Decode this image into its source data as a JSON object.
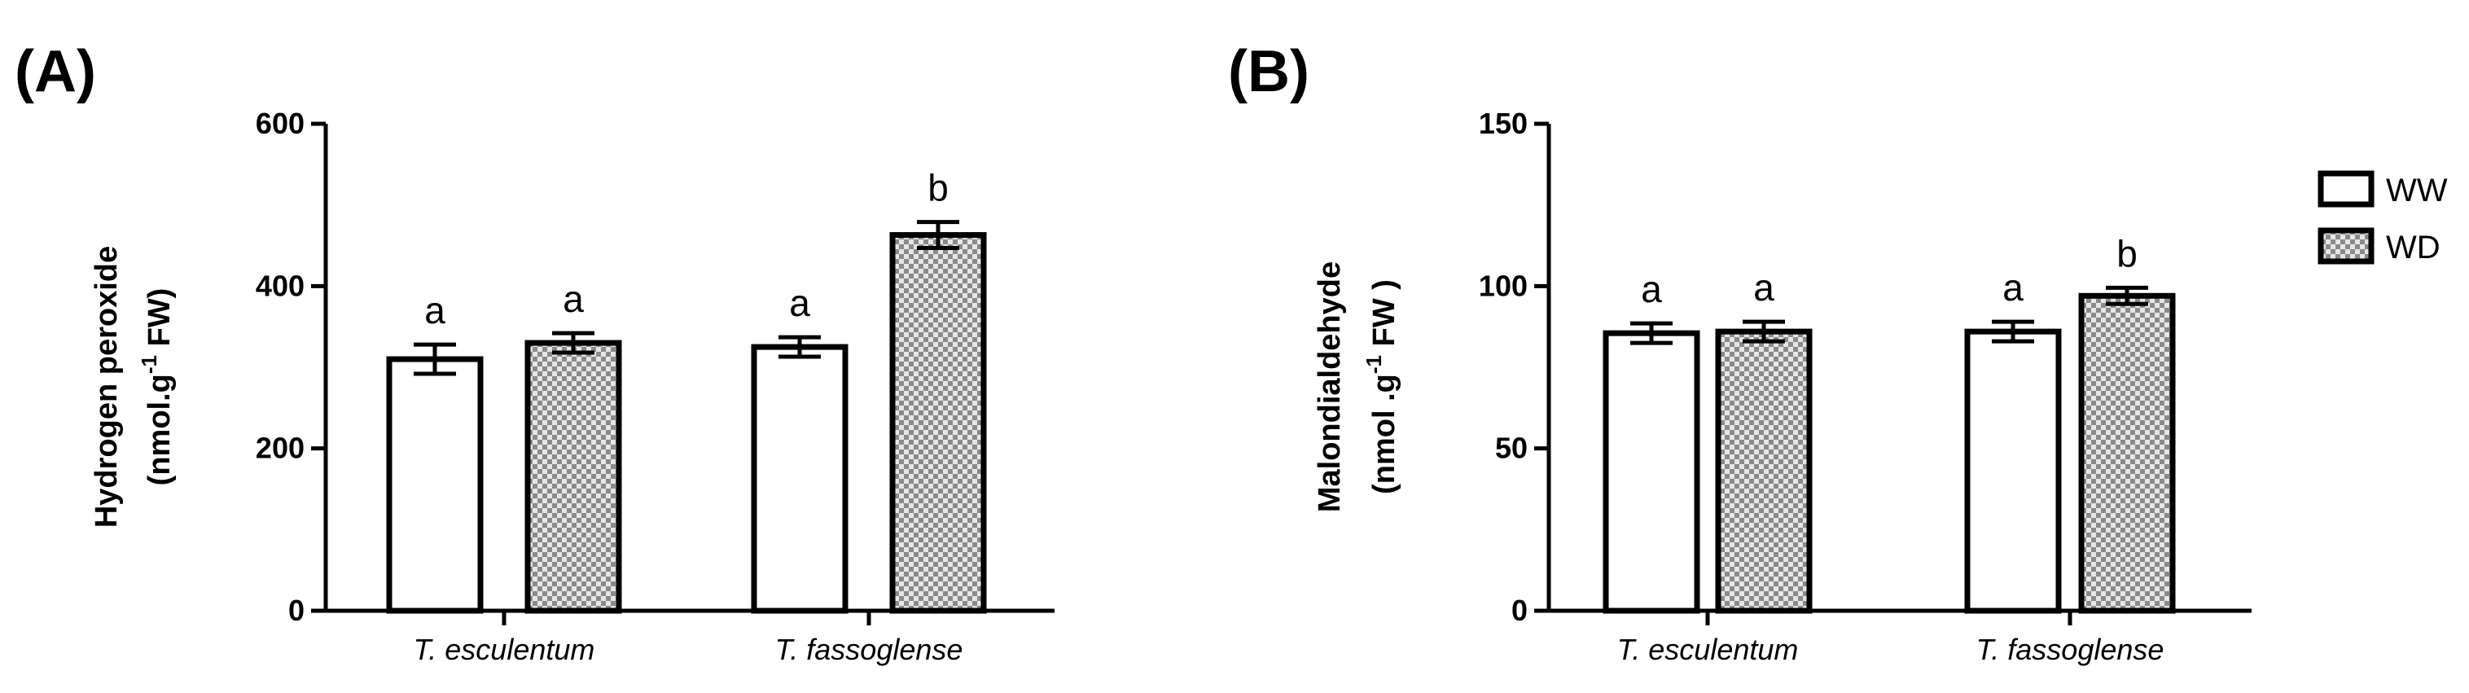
{
  "legend": {
    "items": [
      {
        "label": "WW",
        "pattern": "open"
      },
      {
        "label": "WD",
        "pattern": "checkered"
      }
    ],
    "placement": "top-right"
  },
  "colors": {
    "bar_fill": "#ffffff",
    "outline": "#000000",
    "check_dark": "#8a8a8a",
    "check_light": "#e6e6e6"
  },
  "chart_data": [
    {
      "type": "bar",
      "panel_label": "(A)",
      "ylabel_line1": "Hydrogen peroxide",
      "ylabel_line2_prefix": "(nmol.g",
      "ylabel_line2_sup": "-1",
      "ylabel_line2_suffix": " FW)",
      "ylim": [
        0,
        600
      ],
      "yticks": [
        0,
        200,
        400,
        600
      ],
      "categories": [
        "T. esculentum",
        "T. fassoglense"
      ],
      "series": [
        {
          "name": "WW",
          "values": [
            310,
            325
          ],
          "errors": [
            18,
            12
          ]
        },
        {
          "name": "WD",
          "values": [
            330,
            463
          ],
          "errors": [
            12,
            16
          ]
        }
      ],
      "significance": [
        [
          "a",
          "a"
        ],
        [
          "a",
          "b"
        ]
      ],
      "grid": false
    },
    {
      "type": "bar",
      "panel_label": "(B)",
      "ylabel_line1": "Malondialdehyde",
      "ylabel_line2_prefix": "(nmol .g",
      "ylabel_line2_sup": "-1",
      "ylabel_line2_suffix": " FW )",
      "ylim": [
        0,
        150
      ],
      "yticks": [
        0,
        50,
        100,
        150
      ],
      "categories": [
        "T. esculentum",
        "T. fassoglense"
      ],
      "series": [
        {
          "name": "WW",
          "values": [
            85.5,
            86
          ],
          "errors": [
            3,
            3
          ]
        },
        {
          "name": "WD",
          "values": [
            86,
            97
          ],
          "errors": [
            3,
            2.5
          ]
        }
      ],
      "significance": [
        [
          "a",
          "a"
        ],
        [
          "a",
          "b"
        ]
      ],
      "grid": false
    }
  ]
}
